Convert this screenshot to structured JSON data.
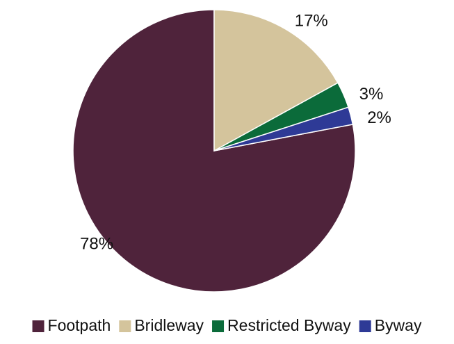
{
  "chart_data": {
    "type": "pie",
    "categories": [
      "Footpath",
      "Bridleway",
      "Restricted Byway",
      "Byway"
    ],
    "values": [
      78,
      17,
      3,
      2
    ],
    "value_labels": [
      "78%",
      "17%",
      "3%",
      "2%"
    ],
    "colors": [
      "#4f233b",
      "#d4c49c",
      "#0b6b3a",
      "#2e3a96"
    ],
    "legend": "bottom"
  }
}
